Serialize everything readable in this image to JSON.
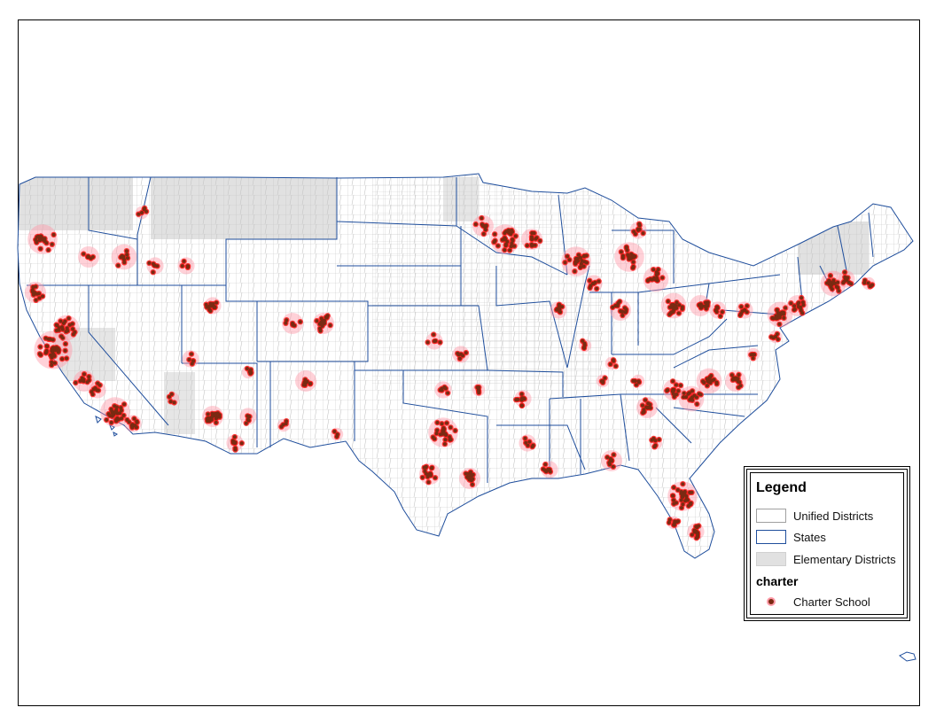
{
  "legend": {
    "title": "Legend",
    "items": [
      {
        "label": "Unified Districts"
      },
      {
        "label": "States"
      },
      {
        "label": "Elementary Districts"
      }
    ],
    "group_title": "charter",
    "group_items": [
      {
        "label": "Charter School"
      }
    ]
  },
  "colors": {
    "unified_fill": "#ffffff",
    "district_lines": "#b8b8b8",
    "state_lines": "#1f4e9c",
    "elementary_fill": "#e1e1e1",
    "charter_point": "#7a2a12",
    "charter_halo": "#ff1a1a",
    "charter_halo_soft": "#ff9aa8"
  }
}
